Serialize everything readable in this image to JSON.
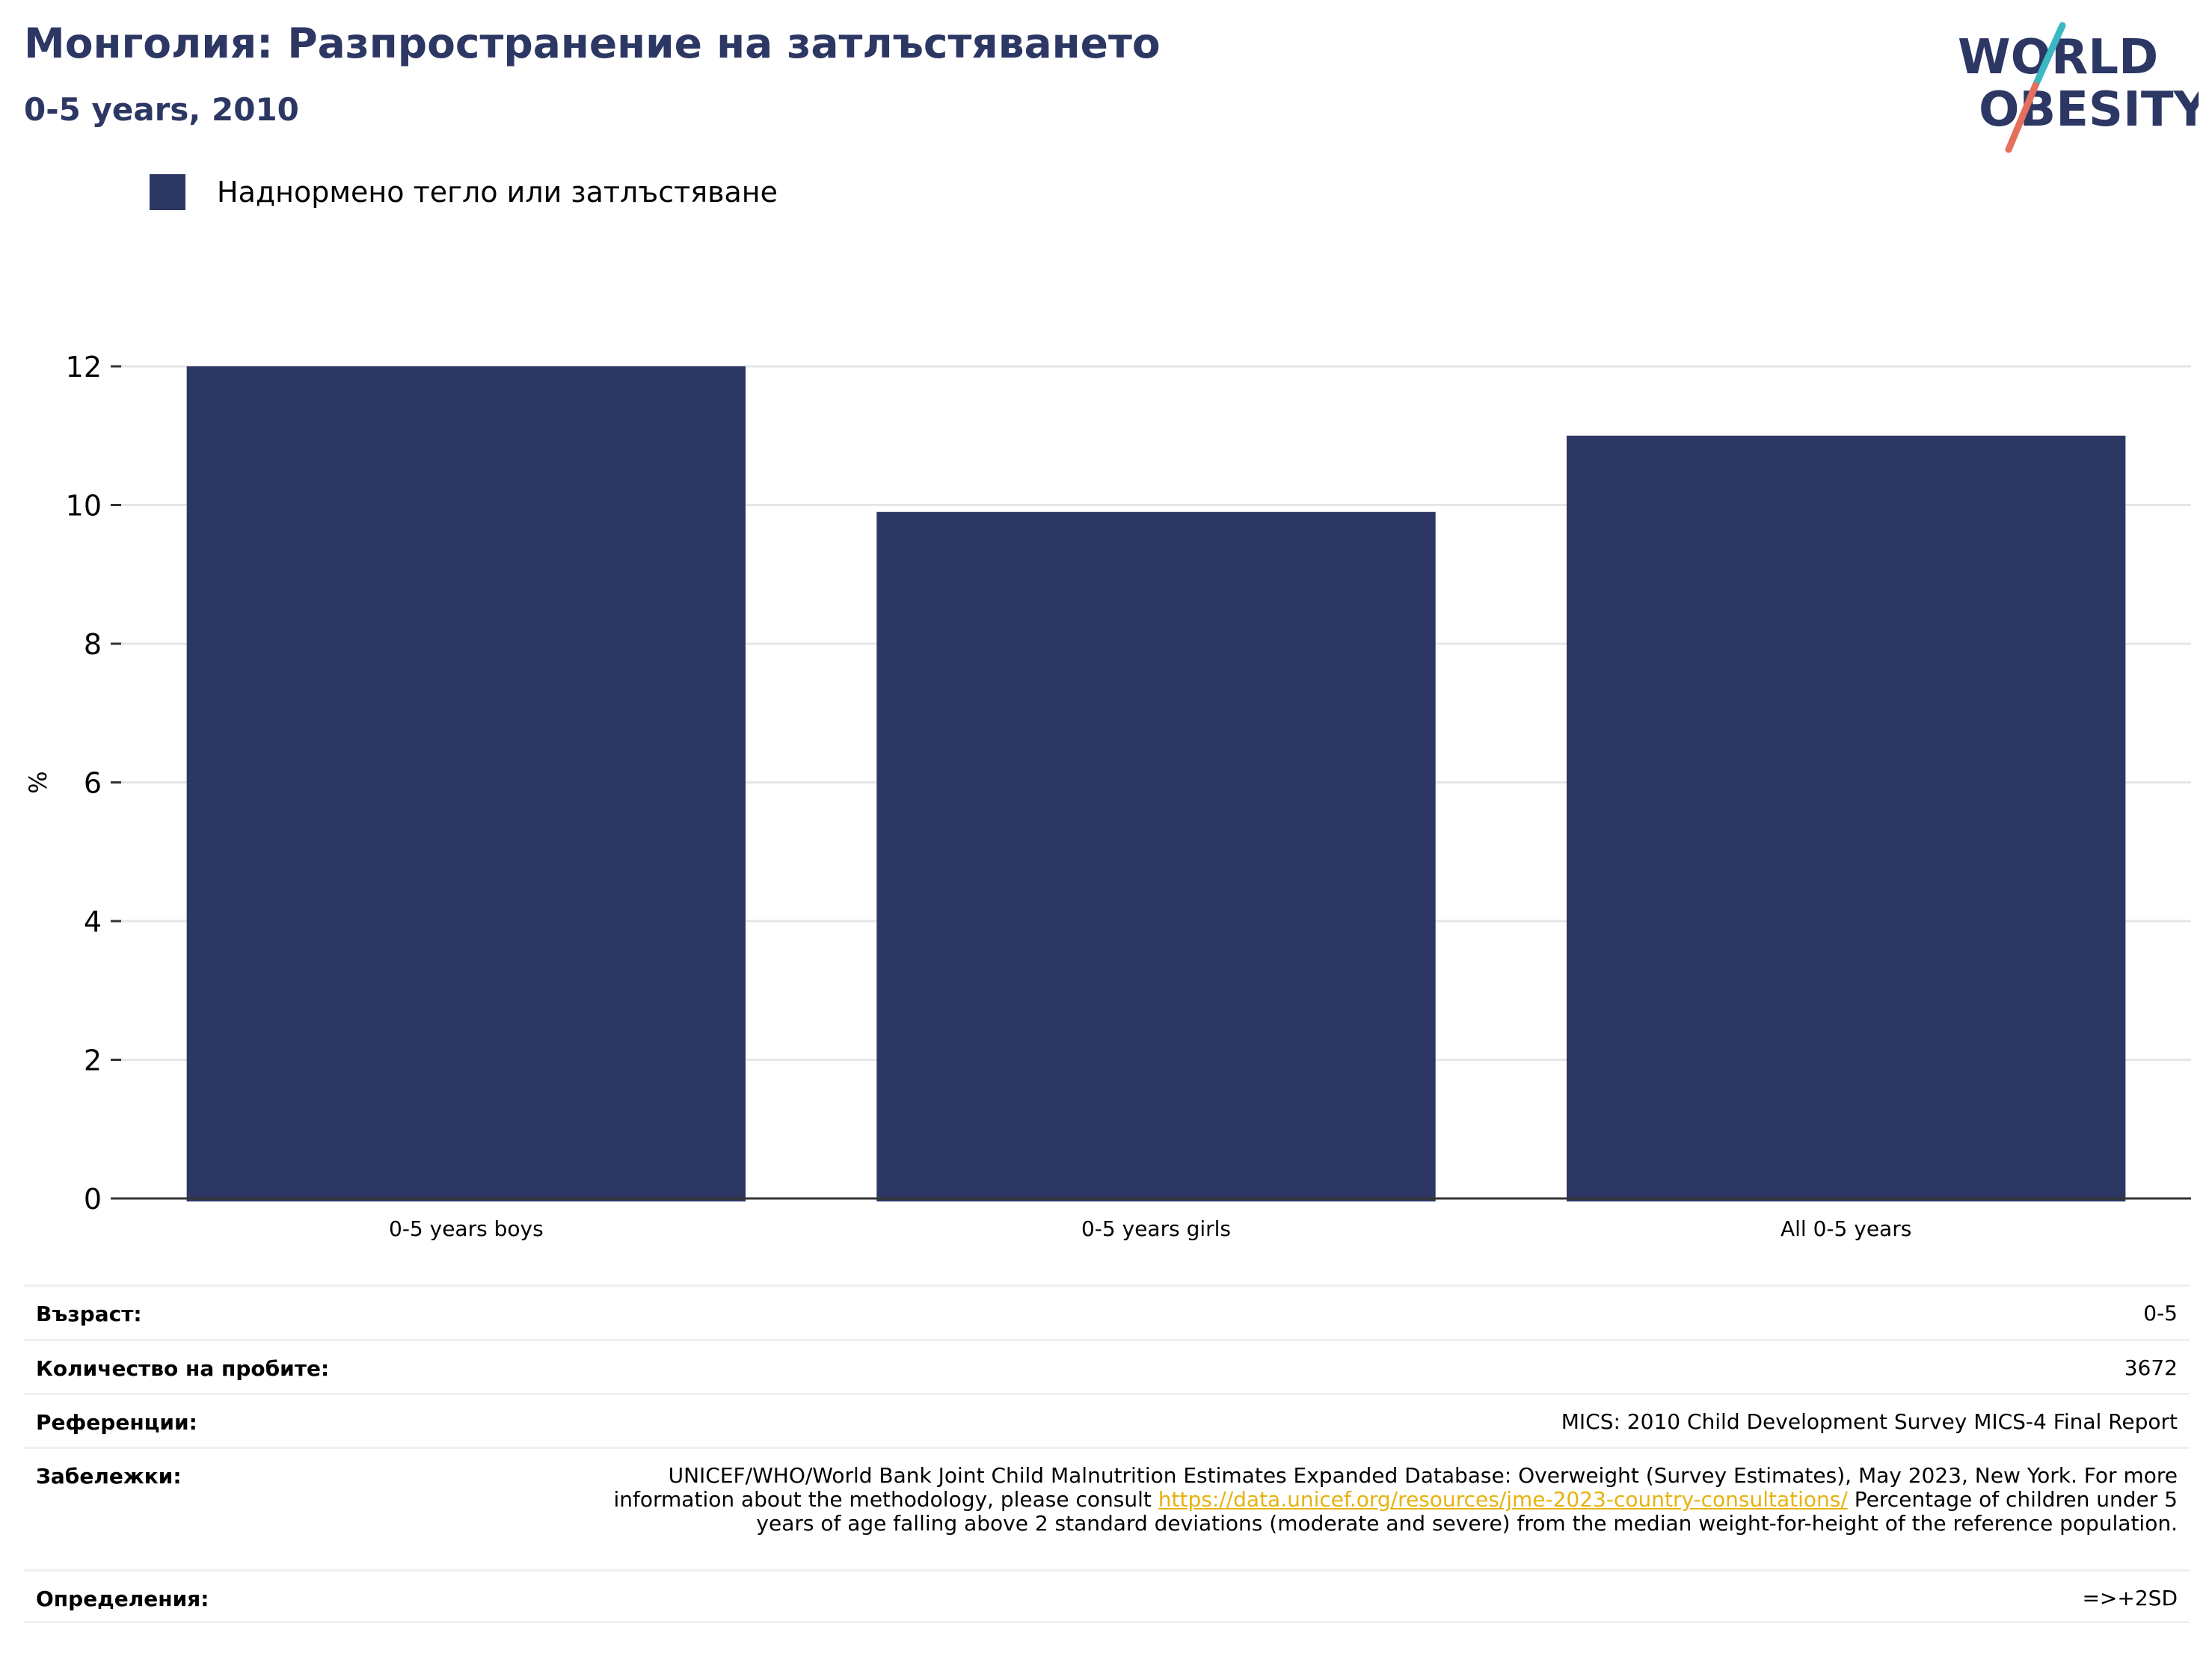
{
  "header": {
    "title": "Монголия: Разпространение на затлъстяването",
    "subtitle": "0-5 years, 2010"
  },
  "logo": {
    "line1": "WORLD",
    "line2": "OBESITY",
    "colors": {
      "text": "#2c3764",
      "slash_top": "#3bb8c3",
      "slash_bottom": "#e4705c"
    }
  },
  "colors": {
    "bar": "#2c3764",
    "grid": "#e6e6e6",
    "axis": "#333333",
    "link": "#e6b20e"
  },
  "chart_data": {
    "type": "bar",
    "categories": [
      "0-5 years boys",
      "0-5 years girls",
      "All 0-5 years"
    ],
    "series": [
      {
        "name": "Наднормено тегло или затлъстяване",
        "values": [
          12.0,
          9.9,
          11.0
        ]
      }
    ],
    "ylabel": "%",
    "ylim": [
      0,
      12
    ],
    "yticks": [
      0,
      2,
      4,
      6,
      8,
      10,
      12
    ],
    "grid": true,
    "legend": "top-left"
  },
  "meta": {
    "age": {
      "label": "Възраст:",
      "value": "0-5"
    },
    "sample": {
      "label": "Количество на пробите:",
      "value": "3672"
    },
    "references": {
      "label": "Референции:",
      "value": "MICS: 2010 Child Development Survey MICS-4 Final Report"
    },
    "notes": {
      "label": "Забележки:",
      "text1": "UNICEF/WHO/World Bank Joint Child Malnutrition Estimates Expanded Database: Overweight (Survey Estimates), May 2023, New York. For more information about the methodology, please consult ",
      "link": "https://data.unicef.org/resources/jme-2023-country-consultations/",
      "text2": " Percentage of children under 5 years of age falling above 2 standard deviations (moderate and severe) from the median weight-for-height of the reference population."
    },
    "definitions": {
      "label": "Определения:",
      "value": "=>+2SD"
    }
  }
}
